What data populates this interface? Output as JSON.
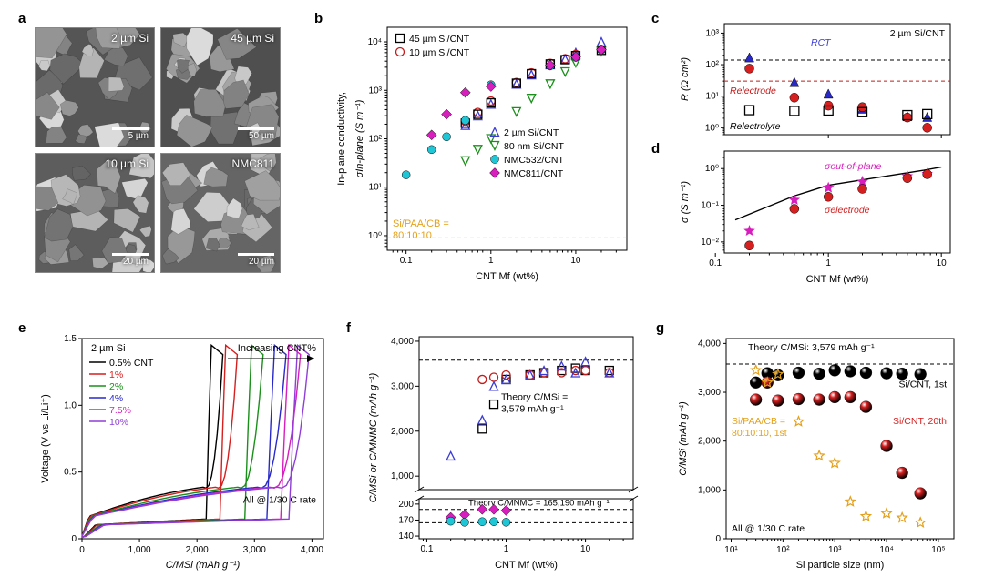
{
  "panel_labels": {
    "a": "a",
    "b": "b",
    "c": "c",
    "d": "d",
    "e": "e",
    "f": "f",
    "g": "g"
  },
  "a": {
    "tiles": [
      {
        "label": "2 µm Si",
        "bar": "5 µm",
        "bg": "#555"
      },
      {
        "label": "45 µm Si",
        "bar": "50 µm",
        "bg": "#4f4f4f"
      },
      {
        "label": "10 µm Si",
        "bar": "20 µm",
        "bg": "#5d5d5d"
      },
      {
        "label": "NMC811",
        "bar": "20 µm",
        "bg": "#656565"
      }
    ],
    "label_color": "#ffffff",
    "bar_color": "#ffffff"
  },
  "b": {
    "type": "scatter",
    "xlog": true,
    "ylog": true,
    "xlim": [
      0.06,
      40
    ],
    "ylim": [
      0.5,
      20000
    ],
    "xticks": [
      0.1,
      1,
      10
    ],
    "yticks": [
      1,
      10,
      100,
      1000,
      10000
    ],
    "ytick_labels": [
      "10⁰",
      "10¹",
      "10²",
      "10³",
      "10⁴"
    ],
    "xlabel": "CNT Mf (wt%)",
    "ylabel": "In-plane conductivity,",
    "ylabel2": "σIn-plane (S m⁻¹)",
    "note": "Si/PAA/CB =\n80:10:10",
    "note_color": "#e4a11b",
    "hline_y": 0.9,
    "hline_color": "#e4a11b",
    "legend": [
      {
        "label": "45 µm Si/CNT",
        "marker": "square-open",
        "color": "#000000"
      },
      {
        "label": "10 µm Si/CNT",
        "marker": "circle-open",
        "color": "#c31b1b"
      },
      {
        "label": "2 µm Si/CNT",
        "marker": "triangle-open",
        "color": "#3b3bd6"
      },
      {
        "label": "80 nm Si/CNT",
        "marker": "tri-down-open",
        "color": "#1a8f1a"
      },
      {
        "label": "NMC532/CNT",
        "marker": "circle-fill",
        "color": "#1fc6d6"
      },
      {
        "label": "NMC811/CNT",
        "marker": "diamond-fill",
        "color": "#d61fbd"
      }
    ],
    "series": {
      "45": [
        [
          0.5,
          210
        ],
        [
          0.7,
          320
        ],
        [
          1,
          550
        ],
        [
          2,
          1400
        ],
        [
          3,
          2200
        ],
        [
          5,
          3500
        ],
        [
          7.5,
          4300
        ],
        [
          10,
          5200
        ],
        [
          20,
          6700
        ]
      ],
      "10": [
        [
          0.5,
          230
        ],
        [
          0.7,
          350
        ],
        [
          1,
          600
        ],
        [
          2,
          1450
        ],
        [
          3,
          2300
        ],
        [
          5,
          3600
        ],
        [
          7.5,
          4500
        ],
        [
          10,
          5500
        ],
        [
          20,
          7000
        ]
      ],
      "2": [
        [
          0.5,
          190
        ],
        [
          0.7,
          300
        ],
        [
          1,
          520
        ],
        [
          2,
          1350
        ],
        [
          3,
          2100
        ],
        [
          5,
          3400
        ],
        [
          7.5,
          4400
        ],
        [
          10,
          6000
        ],
        [
          20,
          10000
        ]
      ],
      "80": [
        [
          0.5,
          35
        ],
        [
          0.7,
          60
        ],
        [
          1,
          100
        ],
        [
          2,
          360
        ],
        [
          3,
          680
        ],
        [
          5,
          1350
        ],
        [
          7.5,
          2400
        ],
        [
          10,
          3700
        ],
        [
          20,
          6300
        ]
      ],
      "532": [
        [
          0.1,
          18
        ],
        [
          0.2,
          60
        ],
        [
          0.3,
          110
        ],
        [
          0.5,
          240
        ],
        [
          1,
          1300
        ],
        [
          5,
          3200
        ],
        [
          10,
          4800
        ],
        [
          20,
          6800
        ]
      ],
      "811": [
        [
          0.2,
          120
        ],
        [
          0.3,
          320
        ],
        [
          0.5,
          900
        ],
        [
          1,
          1200
        ],
        [
          5,
          3300
        ],
        [
          10,
          4900
        ],
        [
          20,
          6900
        ]
      ]
    }
  },
  "c": {
    "type": "scatter",
    "xlog": true,
    "ylog": true,
    "xlim": [
      0.12,
      12
    ],
    "ylim": [
      0.6,
      2000
    ],
    "xticks": [
      0.1,
      1,
      10
    ],
    "yticks": [
      1,
      10,
      100,
      1000
    ],
    "ytick_labels": [
      "10⁰",
      "10¹",
      "10²",
      "10³"
    ],
    "title": "2 µm Si/CNT",
    "ylabel": "R (Ω cm²)",
    "hline1_y": 140,
    "hline1_color": "#000000",
    "hline2_y": 30,
    "hline2_color": "#c31b1b",
    "annot": [
      {
        "text": "RCT",
        "color": "#3b3bd6"
      },
      {
        "text": "Relectrode",
        "color": "#c31b1b"
      },
      {
        "text": "Relectrolyte",
        "color": "#000000"
      }
    ],
    "series": {
      "CT": {
        "marker": "triangle-fill",
        "color": "#2929c9",
        "data": [
          [
            0.2,
            170
          ],
          [
            0.5,
            28
          ],
          [
            1,
            12
          ],
          [
            2,
            4.0
          ],
          [
            5,
            2.3
          ],
          [
            7.5,
            2.2
          ]
        ]
      },
      "elec": {
        "marker": "circle-fill",
        "color": "#d61f1f",
        "data": [
          [
            0.2,
            75
          ],
          [
            0.5,
            9
          ],
          [
            1,
            5
          ],
          [
            2,
            4.5
          ],
          [
            5,
            2.1
          ],
          [
            7.5,
            1.0
          ]
        ]
      },
      "elyte": {
        "marker": "square-open",
        "color": "#000000",
        "data": [
          [
            0.2,
            3.6
          ],
          [
            0.5,
            3.4
          ],
          [
            1,
            3.5
          ],
          [
            2,
            3.1
          ],
          [
            5,
            2.5
          ],
          [
            7.5,
            2.7
          ]
        ]
      }
    }
  },
  "d": {
    "type": "scatter",
    "xlog": true,
    "ylog": true,
    "xlim": [
      0.12,
      12
    ],
    "ylim": [
      0.005,
      3
    ],
    "xticks": [
      0.1,
      1,
      10
    ],
    "yticks": [
      0.01,
      0.1,
      1
    ],
    "ytick_labels": [
      "10⁻²",
      "10⁻¹",
      "10⁰"
    ],
    "ylabel": "σ (S m⁻¹)",
    "xlabel": "CNT Mf (wt%)",
    "annot": [
      {
        "text": "σout-of-plane",
        "color": "#d61fbd"
      },
      {
        "text": "σelectrode",
        "color": "#d61f1f"
      }
    ],
    "fit_line": {
      "color": "#000000",
      "width": 1.4,
      "pts": [
        [
          0.15,
          0.04
        ],
        [
          0.5,
          0.18
        ],
        [
          1,
          0.35
        ],
        [
          3,
          0.6
        ],
        [
          7,
          0.9
        ],
        [
          10,
          1.1
        ]
      ]
    },
    "series": {
      "oop": {
        "marker": "star-fill",
        "color": "#d61fbd",
        "data": [
          [
            0.2,
            0.02
          ],
          [
            0.5,
            0.14
          ],
          [
            1,
            0.3
          ],
          [
            2,
            0.44
          ],
          [
            5,
            0.62
          ],
          [
            7.5,
            0.72
          ]
        ]
      },
      "elec": {
        "marker": "circle-fill",
        "color": "#d61f1f",
        "data": [
          [
            0.2,
            0.008
          ],
          [
            0.5,
            0.08
          ],
          [
            1,
            0.17
          ],
          [
            2,
            0.28
          ],
          [
            5,
            0.55
          ],
          [
            7.5,
            0.7
          ]
        ]
      }
    }
  },
  "e": {
    "type": "line",
    "xlim": [
      0,
      4200
    ],
    "ylim": [
      0,
      1.5
    ],
    "xticks": [
      0,
      1000,
      2000,
      3000,
      4000
    ],
    "yticks": [
      0,
      0.5,
      1.0,
      1.5
    ],
    "ytick_labels": [
      "0",
      "0.5",
      "1.0",
      "1.5"
    ],
    "xtick_labels": [
      "0",
      "1,000",
      "2,000",
      "3,000",
      "4,000"
    ],
    "xlabel": "C/MSi (mAh g⁻¹)",
    "ylabel": "Voltage (V vs Li/Li⁺)",
    "title": "2 µm Si",
    "note_top": "Increasing CNT%",
    "note_bottom": "All @ 1/30 C rate",
    "legend": [
      {
        "label": "0.5% CNT",
        "color": "#000000"
      },
      {
        "label": "1%",
        "color": "#d61f1f"
      },
      {
        "label": "2%",
        "color": "#1a8f1a"
      },
      {
        "label": "4%",
        "color": "#2929c9"
      },
      {
        "label": "7.5%",
        "color": "#d61fbd"
      },
      {
        "label": "10%",
        "color": "#8f3fd6"
      }
    ],
    "charge_endcaps": [
      2450,
      2700,
      3150,
      3550,
      3800,
      3950
    ],
    "discharge_endcaps": [
      2250,
      2500,
      2950,
      3350,
      3600,
      3750
    ]
  },
  "f": {
    "type": "scatter",
    "xlog": true,
    "xlim": [
      0.08,
      40
    ],
    "xticks": [
      0.1,
      1,
      10
    ],
    "xlabel": "CNT Mf (wt%)",
    "ylabel": "C/MSi or C/MNMC (mAh g⁻¹)",
    "top": {
      "ylim": [
        700,
        4100
      ],
      "yticks": [
        1000,
        2000,
        3000,
        4000
      ],
      "ytick_labels": [
        "1,000",
        "2,000",
        "3,000",
        "4,000"
      ]
    },
    "bot": {
      "ylim": [
        135,
        210
      ],
      "yticks": [
        140,
        170,
        200
      ]
    },
    "hline_top": {
      "y": 3579,
      "label": "Theory C/MSi = 3,579 mAh g⁻¹"
    },
    "hline_bot1": {
      "y": 190,
      "label": "Theory C/MNMC = 165,190 mAh g⁻¹"
    },
    "hline_bot2": {
      "y": 165
    },
    "series": {
      "45": {
        "marker": "square-open",
        "color": "#000000",
        "data": [
          [
            0.5,
            2050
          ],
          [
            0.7,
            2600
          ],
          [
            1,
            3150
          ],
          [
            2,
            3250
          ],
          [
            3,
            3300
          ],
          [
            5,
            3350
          ],
          [
            7.5,
            3400
          ],
          [
            10,
            3350
          ],
          [
            20,
            3350
          ]
        ]
      },
      "10": {
        "marker": "circle-open",
        "color": "#c31b1b",
        "data": [
          [
            0.5,
            3150
          ],
          [
            0.7,
            3200
          ],
          [
            1,
            3250
          ],
          [
            2,
            3250
          ],
          [
            3,
            3300
          ],
          [
            5,
            3300
          ],
          [
            7.5,
            3350
          ],
          [
            10,
            3350
          ],
          [
            20,
            3300
          ]
        ]
      },
      "2": {
        "marker": "triangle-open",
        "color": "#3b3bd6",
        "data": [
          [
            0.2,
            1450
          ],
          [
            0.5,
            2250
          ],
          [
            0.7,
            3000
          ],
          [
            1,
            3150
          ],
          [
            2,
            3250
          ],
          [
            3,
            3350
          ],
          [
            5,
            3450
          ],
          [
            7.5,
            3300
          ],
          [
            10,
            3550
          ],
          [
            20,
            3300
          ]
        ]
      },
      "811": {
        "marker": "diamond-fill",
        "color": "#d61fbd",
        "data": [
          [
            0.2,
            175
          ],
          [
            0.3,
            180
          ],
          [
            0.5,
            190
          ],
          [
            0.7,
            190
          ],
          [
            1,
            188
          ]
        ]
      },
      "532": {
        "marker": "circle-fill",
        "color": "#1fc6d6",
        "data": [
          [
            0.2,
            168
          ],
          [
            0.3,
            166
          ],
          [
            0.5,
            167
          ],
          [
            0.7,
            167
          ],
          [
            1,
            166
          ]
        ]
      }
    }
  },
  "g": {
    "type": "scatter",
    "xlog": true,
    "xlim": [
      8,
      200000
    ],
    "ylim": [
      0,
      4100
    ],
    "xticks": [
      10,
      100,
      1000,
      10000,
      100000
    ],
    "xtick_labels": [
      "10¹",
      "10²",
      "10³",
      "10⁴",
      "10⁵"
    ],
    "yticks": [
      0,
      1000,
      2000,
      3000,
      4000
    ],
    "ytick_labels": [
      "0",
      "1,000",
      "2,000",
      "3,000",
      "4,000"
    ],
    "xlabel": "Si particle size (nm)",
    "ylabel": "C/MSi (mAh g⁻¹)",
    "hline": {
      "y": 3579,
      "label": "Theory C/MSi: 3,579 mAh g⁻¹"
    },
    "annot": [
      {
        "text": "Si/CNT, 1st",
        "color": "#000000"
      },
      {
        "text": "Si/CNT, 20th",
        "color": "#d61f1f"
      },
      {
        "text": "Si/PAA/CB =\n80:10:10, 1st",
        "color": "#e4a11b"
      },
      {
        "text": "All @ 1/30 C rate",
        "color": "#000000"
      }
    ],
    "series": {
      "1st": {
        "marker": "sphere",
        "color": "#000000",
        "data": [
          [
            30,
            3200
          ],
          [
            50,
            3390
          ],
          [
            80,
            3350
          ],
          [
            200,
            3400
          ],
          [
            500,
            3380
          ],
          [
            1000,
            3450
          ],
          [
            2000,
            3430
          ],
          [
            4000,
            3400
          ],
          [
            10000,
            3390
          ],
          [
            20000,
            3380
          ],
          [
            45000,
            3370
          ]
        ]
      },
      "20th": {
        "marker": "sphere",
        "color": "#d61f1f",
        "data": [
          [
            30,
            2850
          ],
          [
            50,
            3200
          ],
          [
            80,
            2830
          ],
          [
            200,
            2860
          ],
          [
            500,
            2850
          ],
          [
            1000,
            2900
          ],
          [
            2000,
            2900
          ],
          [
            4000,
            2700
          ],
          [
            10000,
            1900
          ],
          [
            20000,
            1350
          ],
          [
            45000,
            930
          ]
        ]
      },
      "cb": {
        "marker": "star-open",
        "color": "#e4a11b",
        "data": [
          [
            30,
            3450
          ],
          [
            50,
            3200
          ],
          [
            80,
            3370
          ],
          [
            200,
            2400
          ],
          [
            500,
            1700
          ],
          [
            1000,
            1550
          ],
          [
            2000,
            760
          ],
          [
            4000,
            460
          ],
          [
            10000,
            520
          ],
          [
            20000,
            430
          ],
          [
            45000,
            330
          ]
        ]
      }
    }
  },
  "axis_font": 11,
  "tick_font": 10,
  "label_font": 12
}
